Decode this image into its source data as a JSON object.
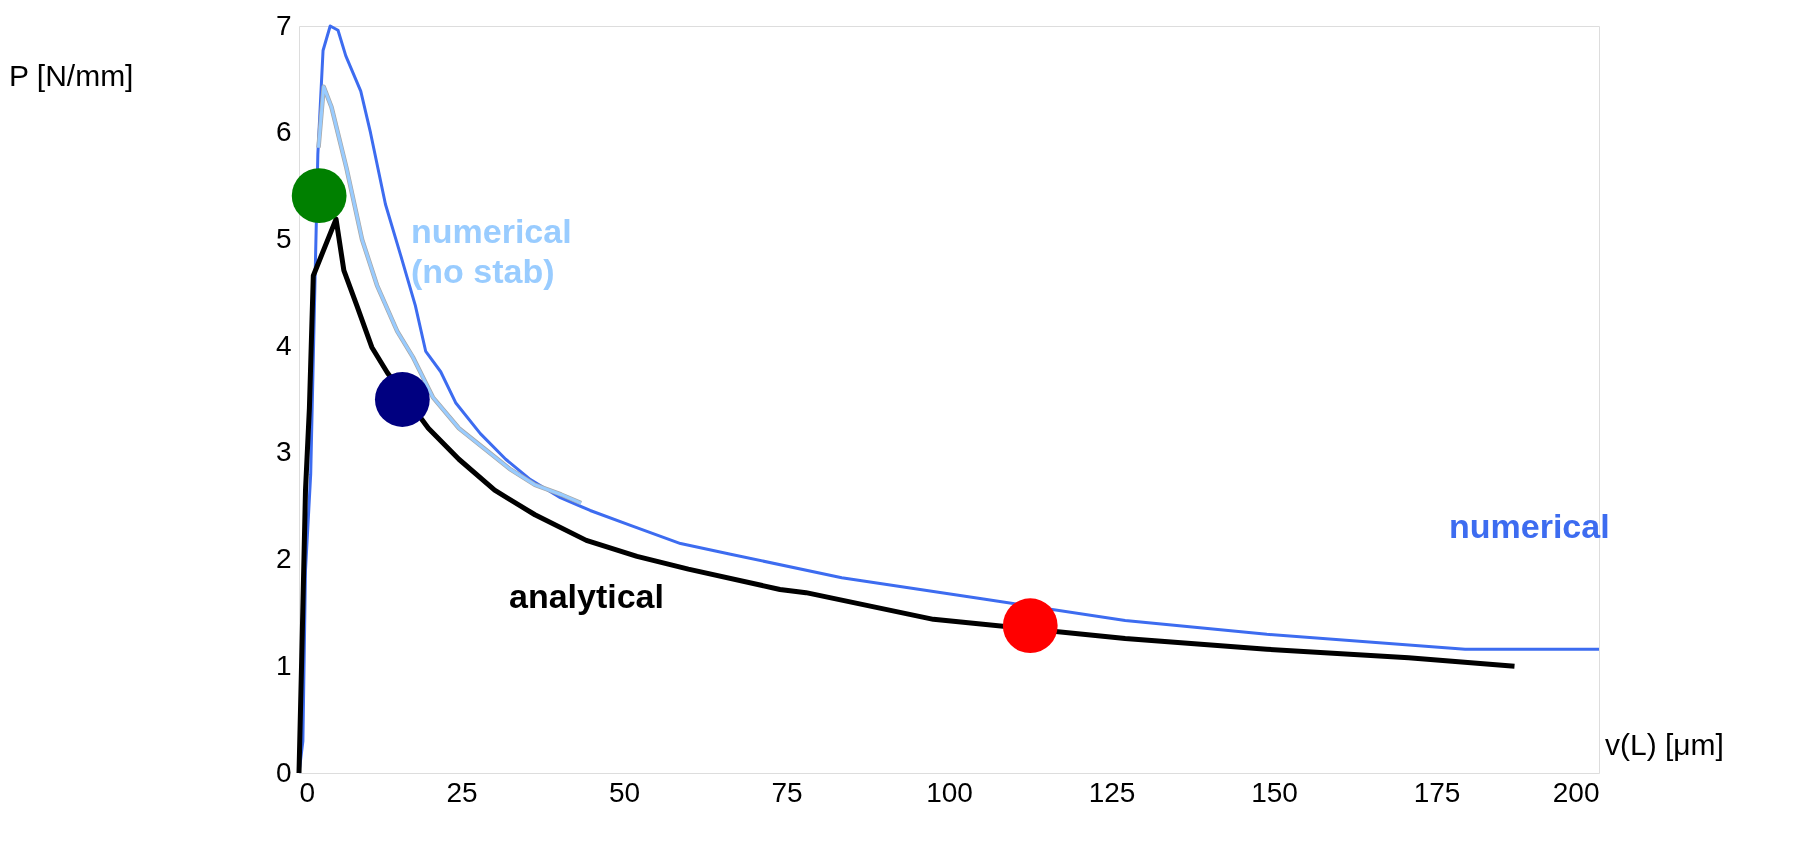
{
  "chart_data": {
    "type": "line",
    "xlabel": "v(L) [μm]",
    "ylabel": "P [N/mm]",
    "xlim": [
      0,
      200
    ],
    "xticks": [
      0,
      25,
      50,
      75,
      100,
      125,
      150,
      175,
      200
    ],
    "ylim": [
      0,
      7
    ],
    "yticks": [
      0,
      1,
      2,
      3,
      4,
      5,
      6,
      7
    ],
    "grid": false,
    "line_style": "solid",
    "series": [
      {
        "name": "numerical",
        "color": "#3d6cf0",
        "x": [
          0,
          0.6,
          1.0,
          1.8,
          2.9,
          3.7,
          4.8,
          6.0,
          7.2,
          9.5,
          11,
          13.3,
          15.6,
          17.9,
          19.5,
          21.8,
          24.1,
          27.9,
          31.8,
          35.6,
          40.2,
          44.8,
          51,
          58.7,
          66.4,
          83.5,
          105.3,
          127.1,
          148.9,
          179.4,
          200
        ],
        "values": [
          0,
          0.3,
          1.9,
          2.8,
          5.8,
          6.77,
          7.0,
          6.96,
          6.72,
          6.39,
          6.0,
          5.33,
          4.86,
          4.38,
          3.95,
          3.76,
          3.47,
          3.18,
          2.94,
          2.75,
          2.58,
          2.46,
          2.32,
          2.15,
          2.05,
          1.83,
          1.63,
          1.43,
          1.3,
          1.16,
          1.16
        ]
      },
      {
        "name": "numerical (no stab)",
        "color": "#99ccff",
        "x": [
          3.0,
          3.8,
          5.0,
          7.3,
          9.7,
          12.0,
          15.1,
          17.5,
          20.6,
          24.6,
          28.5,
          32.4,
          36.3,
          40.3,
          43.4
        ],
        "values": [
          5.86,
          6.43,
          6.24,
          5.67,
          5.0,
          4.57,
          4.14,
          3.9,
          3.52,
          3.23,
          3.04,
          2.85,
          2.7,
          2.61,
          2.53
        ]
      },
      {
        "name": "analytical",
        "color": "#000000",
        "x": [
          0,
          0.4,
          1.0,
          1.6,
          2.2,
          5.7,
          6.9,
          8.9,
          11.2,
          13.6,
          19.9,
          24.6,
          30.1,
          36.3,
          44.2,
          52,
          59.9,
          74,
          78,
          97.6,
          127.1,
          148.9,
          170.7,
          187
        ],
        "values": [
          0,
          1.03,
          2.65,
          3.42,
          4.66,
          5.19,
          4.71,
          4.38,
          3.99,
          3.75,
          3.23,
          2.94,
          2.65,
          2.42,
          2.18,
          2.03,
          1.91,
          1.72,
          1.69,
          1.44,
          1.26,
          1.16,
          1.08,
          1.0
        ]
      },
      {
        "type": "scatter",
        "marker": "circle",
        "x": [
          3.1,
          15.9,
          112.5
        ],
        "values": [
          5.41,
          3.5,
          1.38
        ],
        "colors": [
          "#008000",
          "#000080",
          "#ff0000"
        ]
      }
    ]
  }
}
